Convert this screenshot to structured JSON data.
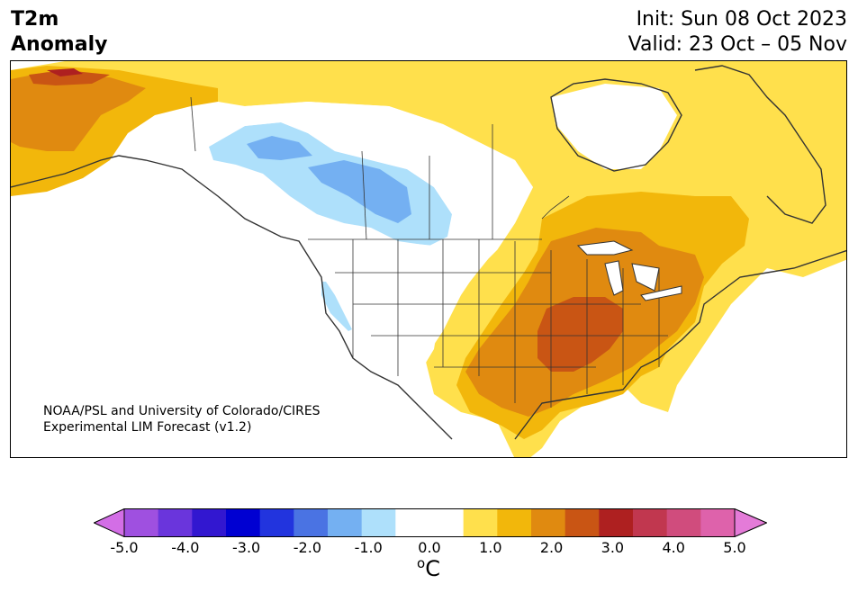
{
  "header": {
    "title_line1": "T2m",
    "title_line2": "Anomaly",
    "init": "Init: Sun 08 Oct 2023",
    "valid": "Valid: 23 Oct – 05 Nov"
  },
  "credit": {
    "line1": "NOAA/PSL and University of Colorado/CIRES",
    "line2": "Experimental LIM Forecast (v1.2)"
  },
  "colorbar": {
    "ticks": [
      "-5.0",
      "-4.0",
      "-3.0",
      "-2.0",
      "-1.0",
      "0.0",
      "1.0",
      "2.0",
      "3.0",
      "4.0",
      "5.0"
    ],
    "unit_sup": "o",
    "unit": "C",
    "colors": [
      "#d36ee6",
      "#9f50e0",
      "#6a35dc",
      "#3217d0",
      "#0000d2",
      "#2234de",
      "#4a73e3",
      "#74b0f2",
      "#aee0fb",
      "#ffffff",
      "#ffffff",
      "#ffe04c",
      "#f2b70b",
      "#e08a10",
      "#c95514",
      "#ae2020",
      "#c1374f",
      "#d04c7d",
      "#de62ab",
      "#e47bd8"
    ]
  },
  "map": {
    "region": "North America",
    "colors": {
      "cold_light": "#aee0fb",
      "cold_mid": "#74b0f2",
      "warm_1": "#ffe04c",
      "warm_2": "#f2b70b",
      "warm_3": "#e08a10",
      "warm_4": "#c95514",
      "warm_5": "#ae2020"
    }
  }
}
